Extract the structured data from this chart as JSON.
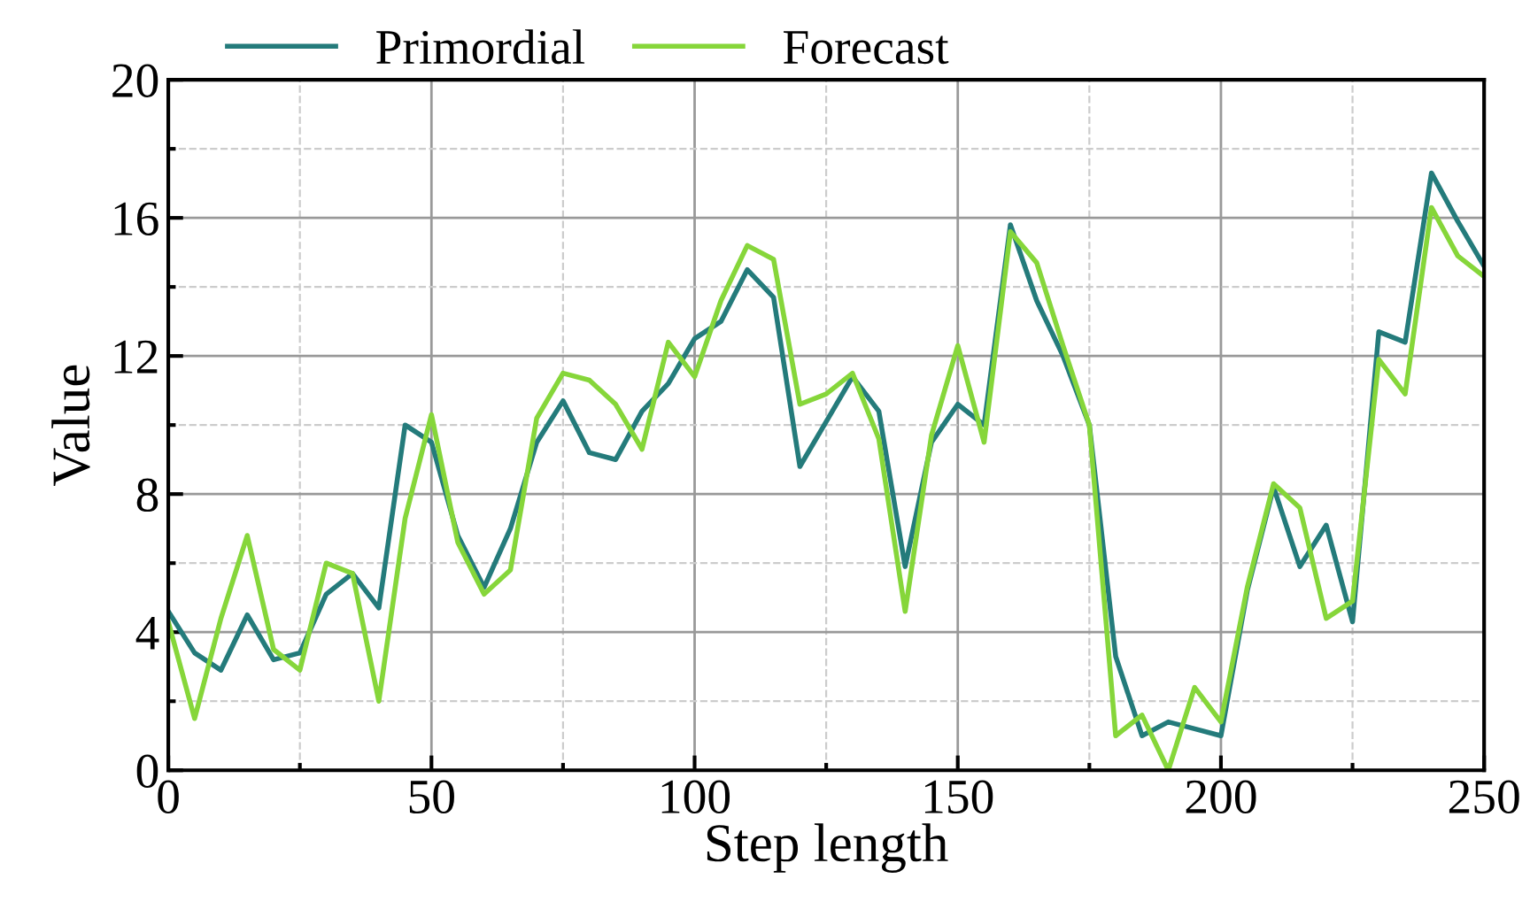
{
  "chart_data": {
    "type": "line",
    "xlabel": "Step length",
    "ylabel": "Value",
    "x": [
      0,
      5,
      10,
      15,
      20,
      25,
      30,
      35,
      40,
      45,
      50,
      55,
      60,
      65,
      70,
      75,
      80,
      85,
      90,
      95,
      100,
      105,
      110,
      115,
      120,
      125,
      130,
      135,
      140,
      145,
      150,
      155,
      160,
      165,
      170,
      175,
      180,
      185,
      190,
      195,
      200,
      205,
      210,
      215,
      220,
      225,
      230,
      235,
      240,
      245,
      250
    ],
    "series": [
      {
        "name": "Primordial",
        "color": "#247b7b",
        "values": [
          4.6,
          3.4,
          2.9,
          4.5,
          3.2,
          3.4,
          5.1,
          5.7,
          4.7,
          10.0,
          9.5,
          6.8,
          5.3,
          7.0,
          9.5,
          10.7,
          9.2,
          9.0,
          10.4,
          11.2,
          12.5,
          13.0,
          14.5,
          13.7,
          8.8,
          10.1,
          11.4,
          10.4,
          5.9,
          9.5,
          10.6,
          10.0,
          15.8,
          13.6,
          12.0,
          10.0,
          3.3,
          1.0,
          1.4,
          1.2,
          1.0,
          5.2,
          8.2,
          5.9,
          7.1,
          4.3,
          12.7,
          12.4,
          17.3,
          15.9,
          14.6
        ]
      },
      {
        "name": "Forecast",
        "color": "#86d63a",
        "values": [
          4.3,
          1.5,
          4.4,
          6.8,
          3.5,
          2.9,
          6.0,
          5.7,
          2.0,
          7.3,
          10.3,
          6.6,
          5.1,
          5.8,
          10.2,
          11.5,
          11.3,
          10.6,
          9.3,
          12.4,
          11.4,
          13.6,
          15.2,
          14.8,
          10.6,
          10.9,
          11.5,
          9.6,
          4.6,
          9.7,
          12.3,
          9.5,
          15.6,
          14.7,
          12.3,
          10.0,
          1.0,
          1.6,
          0.0,
          2.4,
          1.4,
          5.3,
          8.3,
          7.6,
          4.4,
          4.9,
          11.9,
          10.9,
          16.3,
          14.9,
          14.3
        ]
      }
    ],
    "xlim": [
      0,
      250
    ],
    "xticks": [
      0,
      50,
      100,
      150,
      200,
      250
    ],
    "ylim": [
      0,
      20
    ],
    "yticks": [
      0,
      4,
      8,
      12,
      16,
      20
    ],
    "grid": true,
    "legend": "top",
    "marker": "none",
    "line_style": "solid"
  }
}
